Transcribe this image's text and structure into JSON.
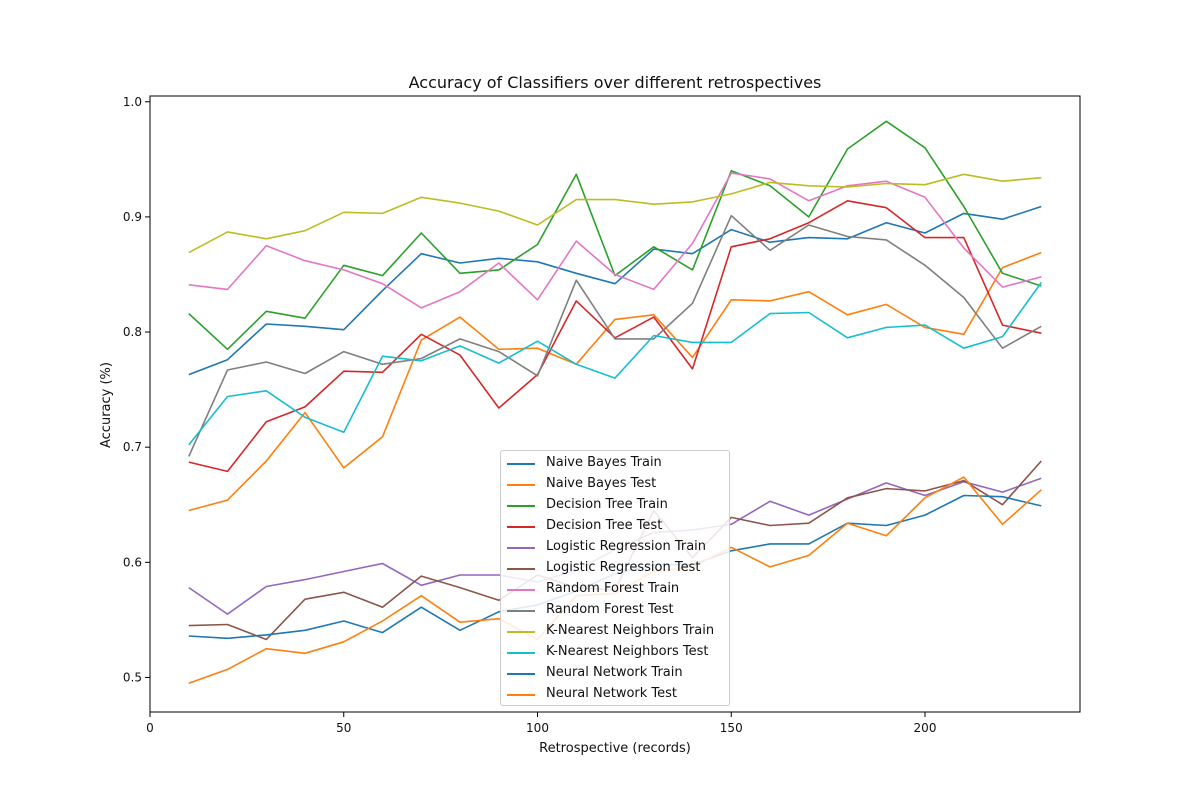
{
  "chart_data": {
    "type": "line",
    "title": "Accuracy of Classifiers over different retrospectives",
    "xlabel": "Retrospective (records)",
    "ylabel": "Accuracy (%)",
    "xlim": [
      0,
      240
    ],
    "ylim": [
      0.47,
      1.005
    ],
    "xticks": [
      0,
      50,
      100,
      150,
      200
    ],
    "yticks": [
      0.5,
      0.6,
      0.7,
      0.8,
      0.9,
      1.0
    ],
    "xtick_labels": [
      "0",
      "50",
      "100",
      "150",
      "200"
    ],
    "ytick_labels": [
      "0.5",
      "0.6",
      "0.7",
      "0.8",
      "0.9",
      "1.0"
    ],
    "legend_position": "lower-center",
    "grid": false,
    "x": [
      10,
      20,
      30,
      40,
      50,
      60,
      70,
      80,
      90,
      100,
      110,
      120,
      130,
      140,
      150,
      160,
      170,
      180,
      190,
      200,
      210,
      220,
      230
    ],
    "series": [
      {
        "name": "Naive Bayes Train",
        "color": "#1f77b4",
        "values": [
          0.763,
          0.776,
          0.807,
          0.805,
          0.802,
          0.836,
          0.868,
          0.86,
          0.864,
          0.861,
          0.851,
          0.842,
          0.872,
          0.868,
          0.889,
          0.878,
          0.882,
          0.881,
          0.895,
          0.886,
          0.903,
          0.898,
          0.909
        ]
      },
      {
        "name": "Naive Bayes Test",
        "color": "#ff7f0e",
        "values": [
          0.645,
          0.654,
          0.688,
          0.73,
          0.682,
          0.709,
          0.793,
          0.813,
          0.785,
          0.786,
          0.772,
          0.811,
          0.815,
          0.778,
          0.828,
          0.827,
          0.835,
          0.815,
          0.824,
          0.804,
          0.798,
          0.856,
          0.869
        ]
      },
      {
        "name": "Decision Tree Train",
        "color": "#2ca02c",
        "values": [
          0.816,
          0.785,
          0.818,
          0.812,
          0.858,
          0.849,
          0.886,
          0.851,
          0.854,
          0.876,
          0.937,
          0.849,
          0.874,
          0.854,
          0.94,
          0.927,
          0.9,
          0.959,
          0.983,
          0.96,
          0.909,
          0.851,
          0.84
        ]
      },
      {
        "name": "Decision Tree Test",
        "color": "#d62728",
        "values": [
          0.687,
          0.679,
          0.722,
          0.735,
          0.766,
          0.765,
          0.798,
          0.78,
          0.734,
          0.763,
          0.827,
          0.795,
          0.813,
          0.768,
          0.874,
          0.881,
          0.895,
          0.914,
          0.908,
          0.882,
          0.882,
          0.806,
          0.799
        ]
      },
      {
        "name": "Logistic Regression Train",
        "color": "#9467bd",
        "values": [
          0.578,
          0.555,
          0.579,
          0.585,
          0.592,
          0.599,
          0.58,
          0.589,
          0.589,
          0.583,
          0.593,
          0.611,
          0.626,
          0.628,
          0.633,
          0.653,
          0.641,
          0.655,
          0.669,
          0.658,
          0.67,
          0.661,
          0.673
        ]
      },
      {
        "name": "Logistic Regression Test",
        "color": "#8c564b",
        "values": [
          0.545,
          0.546,
          0.533,
          0.568,
          0.574,
          0.561,
          0.588,
          0.578,
          0.567,
          0.589,
          0.578,
          0.576,
          0.645,
          0.604,
          0.639,
          0.632,
          0.634,
          0.656,
          0.664,
          0.662,
          0.671,
          0.65,
          0.688
        ]
      },
      {
        "name": "Random Forest Train",
        "color": "#e377c2",
        "values": [
          0.841,
          0.837,
          0.875,
          0.862,
          0.854,
          0.842,
          0.821,
          0.835,
          0.86,
          0.828,
          0.879,
          0.85,
          0.837,
          0.877,
          0.938,
          0.933,
          0.914,
          0.927,
          0.931,
          0.917,
          0.873,
          0.839,
          0.848
        ]
      },
      {
        "name": "Random Forest Test",
        "color": "#7f7f7f",
        "values": [
          0.692,
          0.767,
          0.774,
          0.764,
          0.783,
          0.772,
          0.777,
          0.794,
          0.783,
          0.762,
          0.845,
          0.794,
          0.794,
          0.825,
          0.901,
          0.871,
          0.893,
          0.883,
          0.88,
          0.858,
          0.83,
          0.786,
          0.805
        ]
      },
      {
        "name": "K-Nearest Neighbors Train",
        "color": "#bcbd22",
        "values": [
          0.869,
          0.887,
          0.881,
          0.888,
          0.904,
          0.903,
          0.917,
          0.912,
          0.905,
          0.893,
          0.915,
          0.915,
          0.911,
          0.913,
          0.92,
          0.93,
          0.927,
          0.926,
          0.929,
          0.928,
          0.937,
          0.931,
          0.934
        ]
      },
      {
        "name": "K-Nearest Neighbors Test",
        "color": "#17becf",
        "values": [
          0.702,
          0.744,
          0.749,
          0.726,
          0.713,
          0.779,
          0.775,
          0.788,
          0.773,
          0.792,
          0.772,
          0.76,
          0.797,
          0.791,
          0.791,
          0.816,
          0.817,
          0.795,
          0.804,
          0.806,
          0.786,
          0.796,
          0.843
        ]
      },
      {
        "name": "Neural Network Train",
        "color": "#1f77b4",
        "values": [
          0.536,
          0.534,
          0.537,
          0.541,
          0.549,
          0.539,
          0.561,
          0.541,
          0.557,
          0.563,
          0.575,
          0.59,
          0.598,
          0.598,
          0.61,
          0.616,
          0.616,
          0.634,
          0.632,
          0.641,
          0.658,
          0.657,
          0.649
        ]
      },
      {
        "name": "Neural Network Test",
        "color": "#ff7f0e",
        "values": [
          0.495,
          0.507,
          0.525,
          0.521,
          0.531,
          0.549,
          0.571,
          0.548,
          0.551,
          0.533,
          0.571,
          0.573,
          0.592,
          0.596,
          0.613,
          0.596,
          0.606,
          0.634,
          0.623,
          0.656,
          0.674,
          0.633,
          0.663
        ]
      }
    ]
  }
}
